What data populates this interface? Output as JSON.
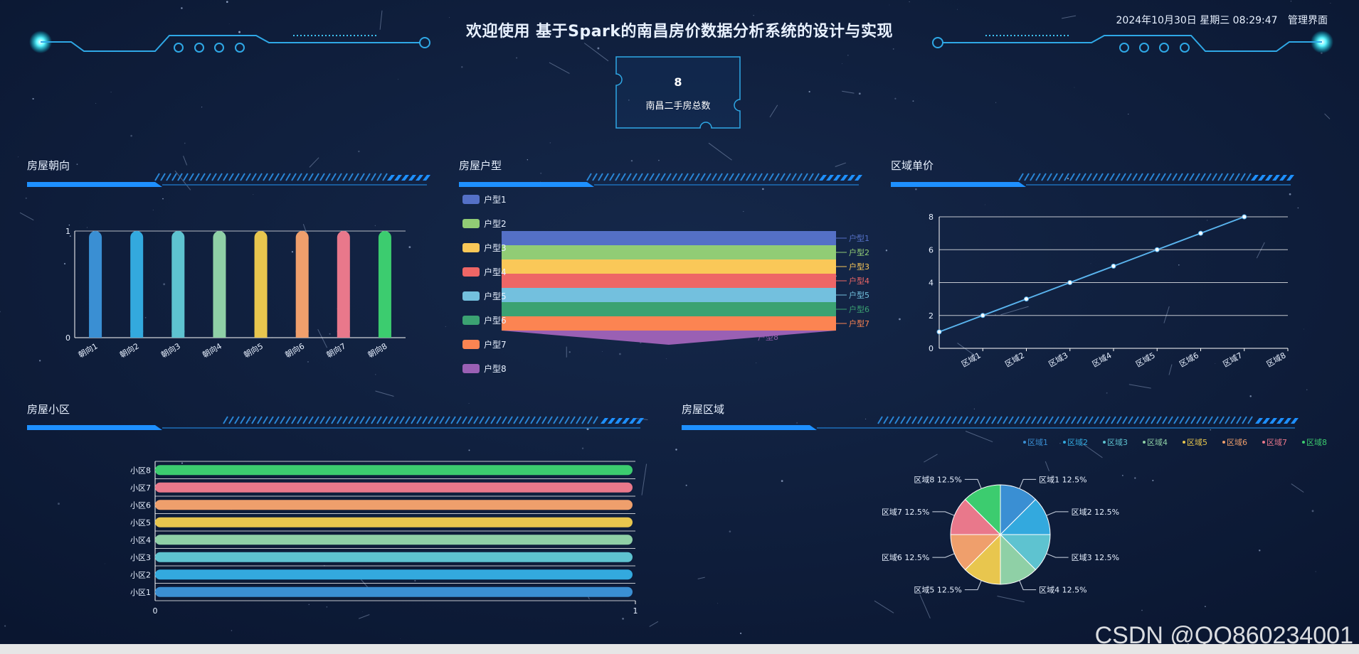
{
  "header": {
    "title": "欢迎使用 基于Spark的南昌房价数据分析系统的设计与实现",
    "datetime": "2024年10月30日 星期三 08:29:47",
    "admin_link": "管理界面"
  },
  "summary": {
    "total_value": "8",
    "total_label": "南昌二手房总数"
  },
  "panels": {
    "orientation_title": "房屋朝向",
    "layout_title": "房屋户型",
    "district_price_title": "区域单价",
    "community_title": "房屋小区",
    "region_title": "房屋区域"
  },
  "colors": {
    "background": "#0c1a33",
    "accent": "#1e90ff",
    "glow": "#00e5ff",
    "bar_palette": [
      "#3a8fd3",
      "#33a9de",
      "#5ec3d0",
      "#8fd0a6",
      "#e8c64e",
      "#ef9f6c",
      "#e9788b",
      "#3ccc6f"
    ],
    "funnel_palette": [
      "#5470c6",
      "#91cc75",
      "#fac858",
      "#ee6666",
      "#73c0de",
      "#3ba272",
      "#fc8452",
      "#9a60b4"
    ]
  },
  "watermark": "CSDN @QQ860234001",
  "chart_data": [
    {
      "id": "orientation",
      "type": "bar",
      "categories": [
        "朝向1",
        "朝向2",
        "朝向3",
        "朝向4",
        "朝向5",
        "朝向6",
        "朝向7",
        "朝向8"
      ],
      "values": [
        1,
        1,
        1,
        1,
        1,
        1,
        1,
        1
      ],
      "ylim": [
        0,
        1
      ],
      "yticks": [
        "0",
        "1"
      ]
    },
    {
      "id": "layout",
      "type": "funnel",
      "legend": [
        "户型1",
        "户型2",
        "户型3",
        "户型4",
        "户型5",
        "户型6",
        "户型7",
        "户型8"
      ],
      "values": [
        1,
        1,
        1,
        1,
        1,
        1,
        1,
        1
      ]
    },
    {
      "id": "district_price",
      "type": "line",
      "categories": [
        "区域1",
        "区域2",
        "区域3",
        "区域4",
        "区域5",
        "区域6",
        "区域7",
        "区域8"
      ],
      "values": [
        1,
        2,
        3,
        4,
        5,
        6,
        7,
        8
      ],
      "ylim": [
        0,
        8
      ],
      "yticks": [
        "0",
        "2",
        "4",
        "6",
        "8"
      ],
      "grid": true
    },
    {
      "id": "community",
      "type": "bar",
      "orientation": "horizontal",
      "categories": [
        "小区1",
        "小区2",
        "小区3",
        "小区4",
        "小区5",
        "小区6",
        "小区7",
        "小区8"
      ],
      "values": [
        1,
        1,
        1,
        1,
        1,
        1,
        1,
        1
      ],
      "xlim": [
        0,
        1
      ],
      "xticks": [
        "0",
        "1"
      ]
    },
    {
      "id": "region",
      "type": "pie",
      "legend_position": "top-right",
      "labels": [
        "区域1",
        "区域2",
        "区域3",
        "区域4",
        "区域5",
        "区域6",
        "区域7",
        "区域8"
      ],
      "values": [
        1,
        1,
        1,
        1,
        1,
        1,
        1,
        1
      ],
      "percent_labels": [
        "区域1 12.5%",
        "区域2 12.5%",
        "区域3 12.5%",
        "区域4 12.5%",
        "区域5 12.5%",
        "区域6 12.5%",
        "区域7 12.5%",
        "区域8 12.5%"
      ]
    }
  ]
}
